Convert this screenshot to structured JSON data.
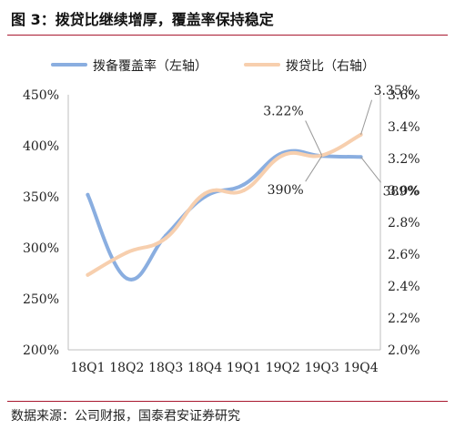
{
  "figure": {
    "title": "图 3：拨贷比继续增厚，覆盖率保持稳定",
    "source": "数据来源：公司财报，国泰君安证券研究"
  },
  "chart_data": {
    "type": "line",
    "categories": [
      "18Q1",
      "18Q2",
      "18Q3",
      "18Q4",
      "19Q1",
      "19Q2",
      "19Q3",
      "19Q4"
    ],
    "series": [
      {
        "name": "拨备覆盖率（左轴）",
        "axis": "left",
        "color": "#8aaee0",
        "values": [
          352,
          270,
          312,
          350,
          362,
          393,
          390,
          389
        ]
      },
      {
        "name": "拨贷比（右轴）",
        "axis": "right",
        "color": "#f7cfae",
        "values": [
          2.47,
          2.61,
          2.7,
          2.98,
          3.0,
          3.22,
          3.22,
          3.35
        ]
      }
    ],
    "y_left": {
      "min": 200,
      "max": 450,
      "step": 50,
      "tick_labels": [
        "200%",
        "250%",
        "300%",
        "350%",
        "400%",
        "450%"
      ]
    },
    "y_right": {
      "min": 2.0,
      "max": 3.6,
      "step": 0.2,
      "tick_labels": [
        "2.0%",
        "2.2%",
        "2.4%",
        "2.6%",
        "2.8%",
        "3.0%",
        "3.2%",
        "3.4%",
        "3.6%"
      ]
    },
    "annotations": [
      {
        "text": "3.22%",
        "series": 1,
        "index": 6
      },
      {
        "text": "3.35%",
        "series": 1,
        "index": 7
      },
      {
        "text": "390%",
        "series": 0,
        "index": 6
      },
      {
        "text": "389%",
        "series": 0,
        "index": 7
      }
    ],
    "grid": false,
    "legend_position": "top"
  }
}
